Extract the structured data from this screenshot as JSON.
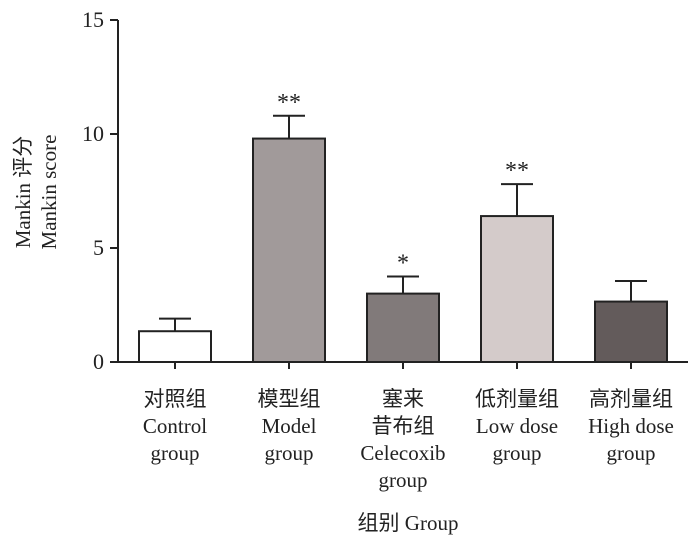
{
  "chart_data": {
    "type": "bar",
    "title": "",
    "ylabel_lines": [
      "Mankin 评分",
      "Mankin score"
    ],
    "xlabel": "组别 Group",
    "ylim": [
      0,
      15
    ],
    "yticks": [
      0,
      5,
      10,
      15
    ],
    "categories": [
      [
        "对照组",
        "Control",
        "group"
      ],
      [
        "模型组",
        "Model",
        "group"
      ],
      [
        "塞来",
        "昔布组",
        "Celecoxib",
        "group"
      ],
      [
        "低剂量组",
        "Low dose",
        "group"
      ],
      [
        "高剂量组",
        "High dose",
        "group"
      ]
    ],
    "values": [
      1.35,
      9.8,
      3.0,
      6.4,
      2.65
    ],
    "errors": [
      0.55,
      1.0,
      0.75,
      1.4,
      0.9
    ],
    "significance": [
      "",
      "**",
      "*",
      "**",
      ""
    ],
    "bar_colors": [
      "#ffffff",
      "#a19a9a",
      "#817a7a",
      "#d4cbca",
      "#635b5b"
    ],
    "grid": false
  }
}
